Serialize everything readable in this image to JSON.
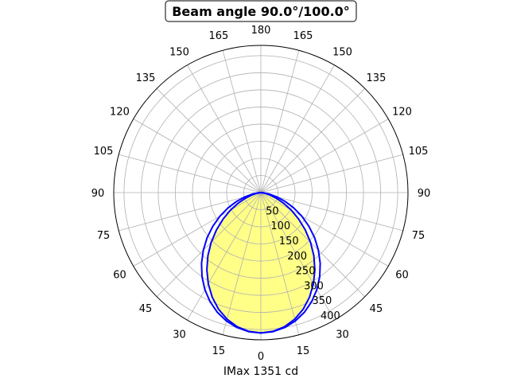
{
  "chart_data": {
    "type": "polar-line",
    "title": "Beam angle 90.0°/100.0°",
    "xlabel": "IMax 1351 cd",
    "angle_ticks": [
      "0",
      "15",
      "30",
      "45",
      "60",
      "75",
      "90",
      "105",
      "120",
      "135",
      "150",
      "165",
      "180"
    ],
    "radial_ticks": [
      50,
      100,
      150,
      200,
      250,
      300,
      350,
      400
    ],
    "rlim": [
      0,
      430
    ],
    "grid": true,
    "angles_deg": [
      0,
      5,
      10,
      15,
      20,
      25,
      30,
      35,
      40,
      45,
      50,
      55,
      60,
      65,
      70,
      75,
      80,
      85,
      90
    ],
    "series": [
      {
        "values": [
          410,
          406.9,
          397.6,
          382.5,
          362.0,
          336.8,
          307.5,
          275.1,
          240.7,
          205,
          169.3,
          134.9,
          102.5,
          73.2,
          48.0,
          27.5,
          12.4,
          3.1,
          0
        ],
        "color": "#0000ff",
        "fill": "#ffff88"
      },
      {
        "values": [
          410,
          407.5,
          400.2,
          388.3,
          371.9,
          351.4,
          327.2,
          299.7,
          269.8,
          237.8,
          205,
          171.4,
          138.2,
          106.2,
          75.9,
          49.2,
          26.2,
          8.9,
          0
        ],
        "color": "#0000ff"
      }
    ]
  }
}
